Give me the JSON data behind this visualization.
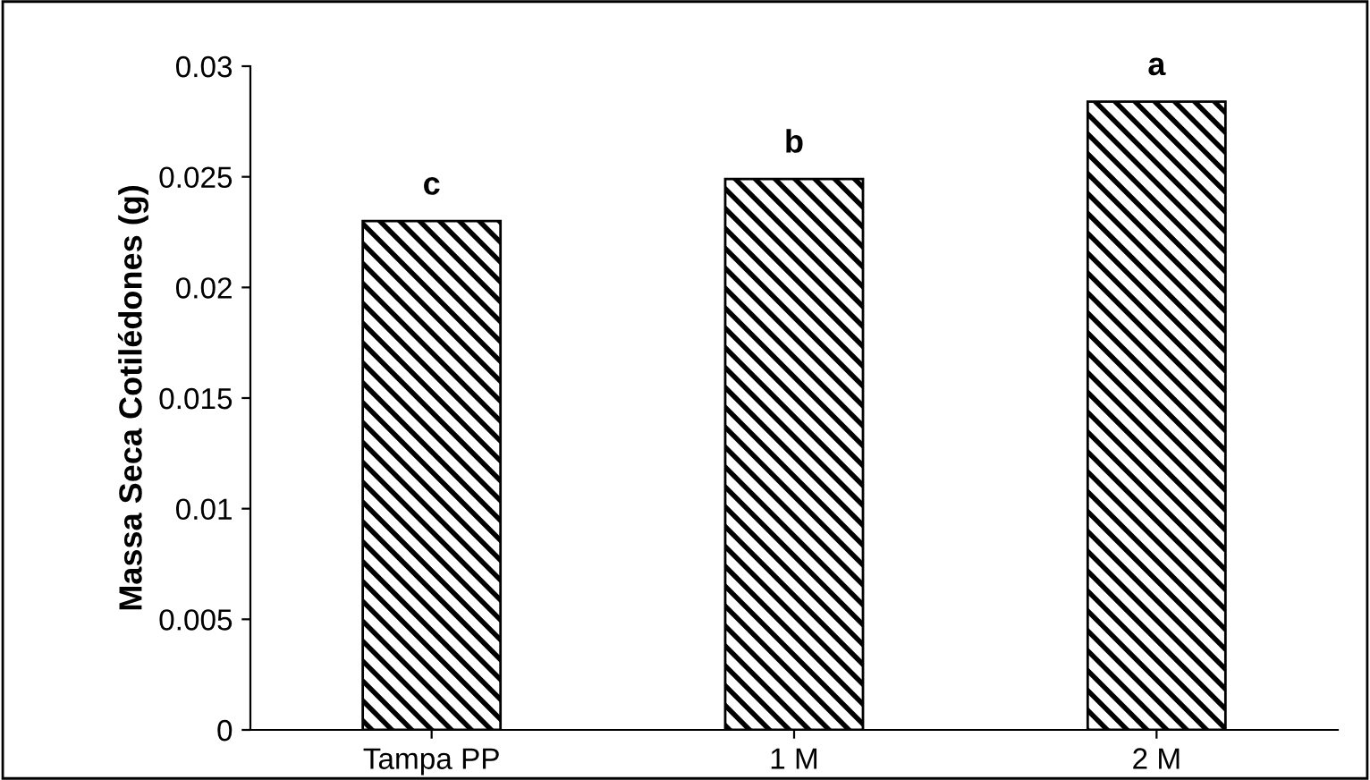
{
  "chart_data": {
    "type": "bar",
    "ylabel": "Massa Seca Cotilédones (g)",
    "categories": [
      "Tampa PP",
      "1 M",
      "2 M"
    ],
    "values": [
      0.023,
      0.0249,
      0.0284
    ],
    "color": "#000000",
    "ylim": [
      0,
      0.03
    ],
    "yticks": [
      0,
      0.005,
      0.01,
      0.015,
      0.02,
      0.025,
      0.03
    ],
    "annotations": [
      {
        "text": "c",
        "x": "Tampa PP",
        "y": 0.023
      },
      {
        "text": "b",
        "x": "1 M",
        "y": 0.0249
      },
      {
        "text": "a",
        "x": "2 M",
        "y": 0.0284
      }
    ]
  }
}
